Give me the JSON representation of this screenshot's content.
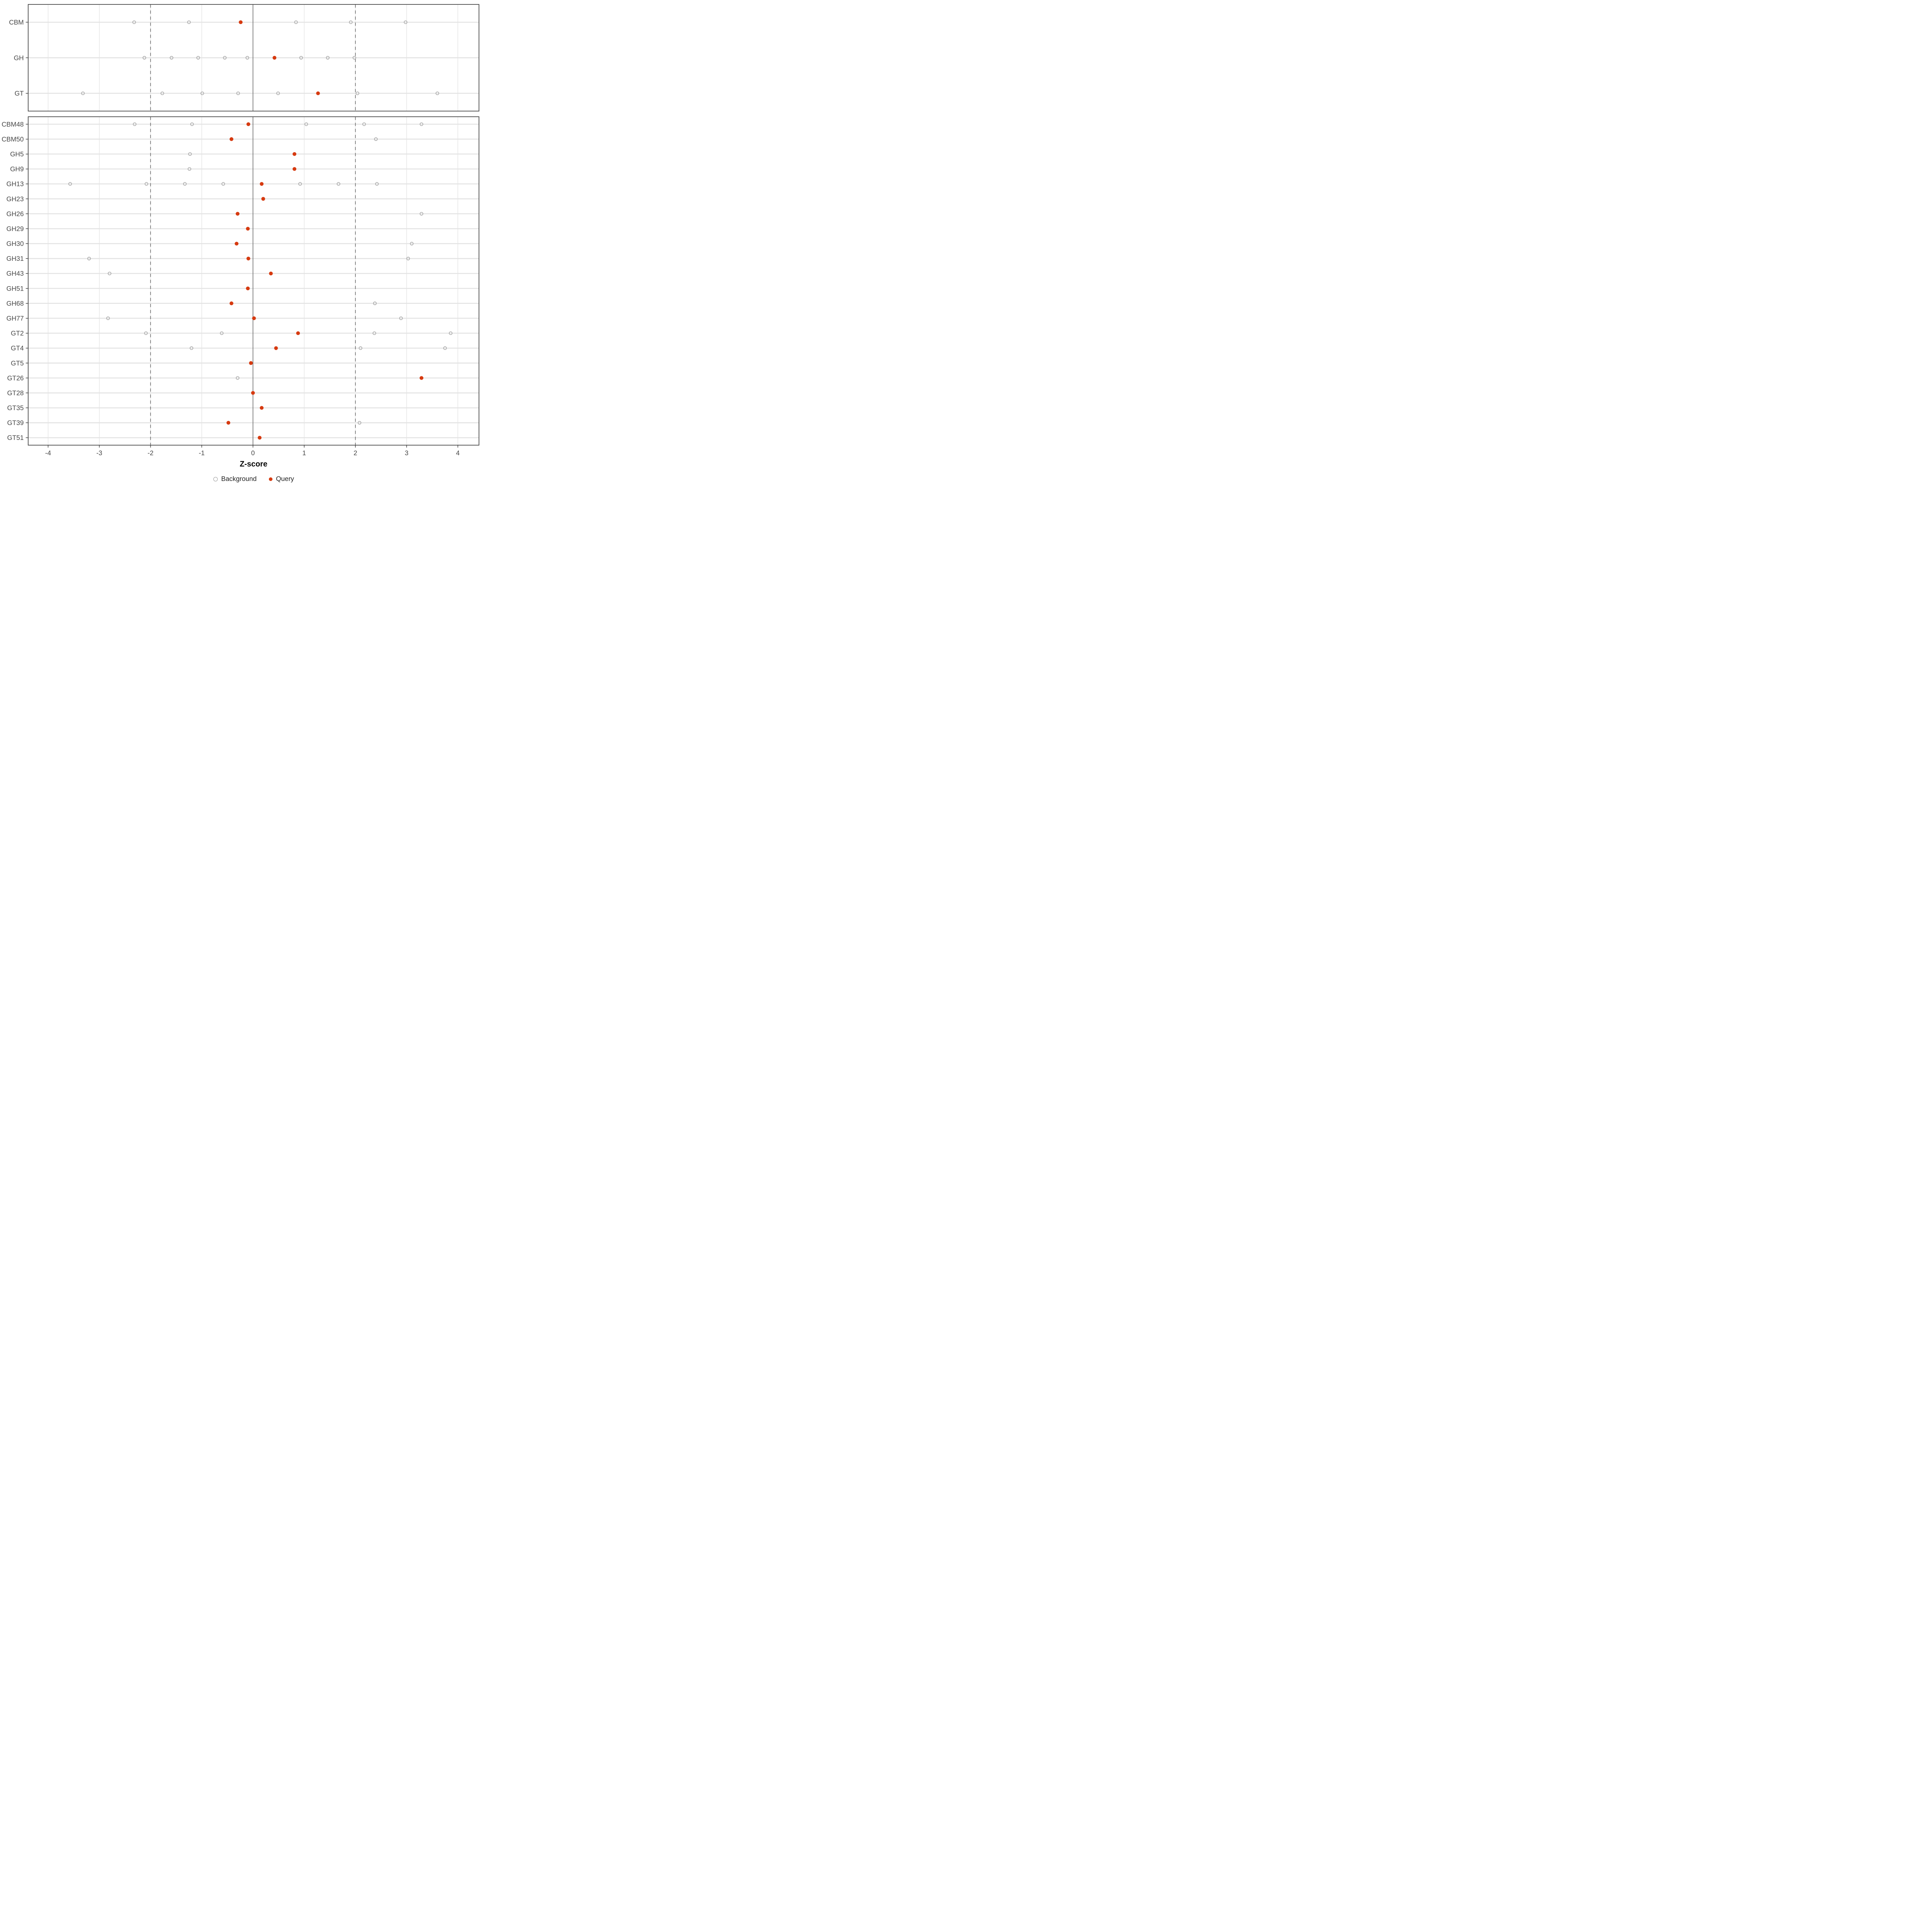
{
  "chart_data": {
    "type": "scatter",
    "title": "",
    "xlabel": "Z-score",
    "ylabel": "",
    "x_ticks": [
      -4,
      -3,
      -2,
      -1,
      0,
      1,
      2,
      3,
      4
    ],
    "xlim": [
      -4.4,
      4.4
    ],
    "grid": "on",
    "legend_position": "bottom",
    "reference_lines": {
      "solid": [
        0
      ],
      "dashed": [
        -2,
        2
      ]
    },
    "legend": [
      {
        "label": "Background",
        "marker": "open-circle",
        "color": "#9c9c9c"
      },
      {
        "label": "Query",
        "marker": "filled-circle",
        "color": "#d63a10"
      }
    ],
    "panels": [
      {
        "name": "family-panel",
        "rows": [
          {
            "label": "CBM",
            "query": -0.24,
            "background": [
              -2.32,
              -1.25,
              0.84,
              1.91,
              2.98
            ]
          },
          {
            "label": "GH",
            "query": 0.42,
            "background": [
              -2.12,
              -1.59,
              -1.07,
              -0.55,
              -0.11,
              0.94,
              1.46,
              1.98
            ]
          },
          {
            "label": "GT",
            "query": 1.27,
            "background": [
              -3.32,
              -1.77,
              -0.99,
              -0.29,
              0.49,
              2.04,
              3.6
            ]
          }
        ]
      },
      {
        "name": "subfamily-panel",
        "rows": [
          {
            "label": "CBM48",
            "query": -0.09,
            "background": [
              -2.31,
              -1.19,
              1.04,
              2.17,
              3.29
            ]
          },
          {
            "label": "CBM50",
            "query": -0.42,
            "background": [
              2.4
            ]
          },
          {
            "label": "GH5",
            "query": 0.81,
            "background": [
              -1.23
            ]
          },
          {
            "label": "GH9",
            "query": 0.81,
            "background": [
              -1.24
            ]
          },
          {
            "label": "GH13",
            "query": 0.17,
            "background": [
              -3.57,
              -2.08,
              -1.33,
              -0.58,
              0.92,
              1.67,
              2.42
            ]
          },
          {
            "label": "GH23",
            "query": 0.2,
            "background": []
          },
          {
            "label": "GH26",
            "query": -0.3,
            "background": [
              3.29
            ]
          },
          {
            "label": "GH29",
            "query": -0.1,
            "background": []
          },
          {
            "label": "GH30",
            "query": -0.32,
            "background": [
              3.1
            ]
          },
          {
            "label": "GH31",
            "query": -0.09,
            "background": [
              -3.2,
              3.03
            ]
          },
          {
            "label": "GH43",
            "query": 0.35,
            "background": [
              -2.8
            ]
          },
          {
            "label": "GH51",
            "query": -0.1,
            "background": []
          },
          {
            "label": "GH68",
            "query": -0.42,
            "background": [
              2.38
            ]
          },
          {
            "label": "GH77",
            "query": 0.02,
            "background": [
              -2.83,
              2.89
            ]
          },
          {
            "label": "GT2",
            "query": 0.88,
            "background": [
              -2.09,
              -0.61,
              2.37,
              3.86
            ]
          },
          {
            "label": "GT4",
            "query": 0.45,
            "background": [
              -1.2,
              2.1,
              3.75
            ]
          },
          {
            "label": "GT5",
            "query": -0.04,
            "background": []
          },
          {
            "label": "GT26",
            "query": 3.29,
            "background": [
              -0.3
            ]
          },
          {
            "label": "GT28",
            "query": 0.0,
            "background": []
          },
          {
            "label": "GT35",
            "query": 0.17,
            "background": []
          },
          {
            "label": "GT39",
            "query": -0.48,
            "background": [
              2.08
            ]
          },
          {
            "label": "GT51",
            "query": 0.13,
            "background": []
          }
        ]
      }
    ]
  },
  "colors": {
    "query": "#d63a10",
    "background_stroke": "#9c9c9c",
    "grid": "#e3e3e3",
    "reference_line": "#5e5e5e",
    "panel_border": "#3c3c3c",
    "tick": "#333333",
    "text": "#474747"
  }
}
